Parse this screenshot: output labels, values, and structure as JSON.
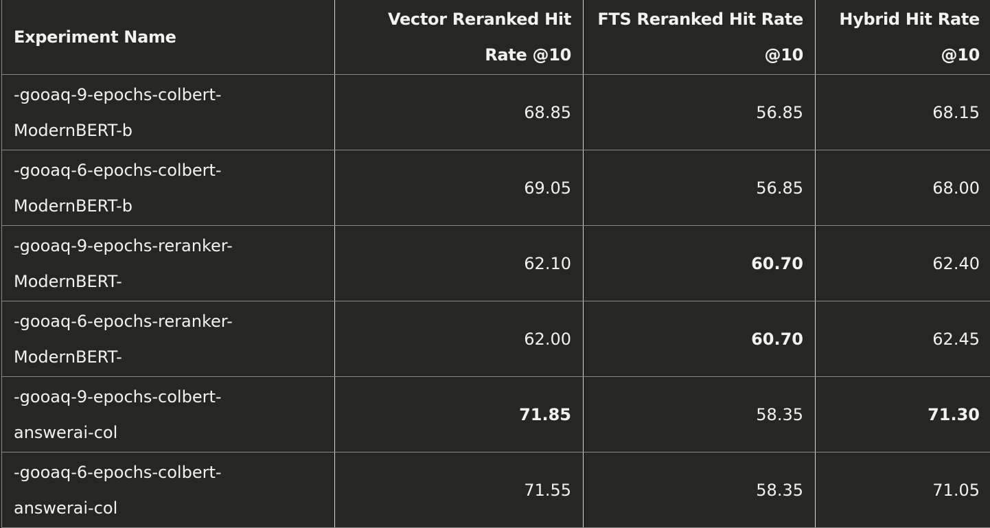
{
  "headers": [
    "Experiment Name",
    "Vector Reranked Hit Rate @10",
    "FTS Reranked Hit Rate @10",
    "Hybrid Hit Rate @10"
  ],
  "rows": [
    {
      "name_line1": "-gooaq-9-epochs-colbert-",
      "name_line2": "ModernBERT-b",
      "vector": "68.85",
      "fts": "56.85",
      "hybrid": "68.15",
      "bold": []
    },
    {
      "name_line1": "-gooaq-6-epochs-colbert-",
      "name_line2": "ModernBERT-b",
      "vector": "69.05",
      "fts": "56.85",
      "hybrid": "68.00",
      "bold": []
    },
    {
      "name_line1": "-gooaq-9-epochs-reranker-",
      "name_line2": "ModernBERT-",
      "vector": "62.10",
      "fts": "60.70",
      "hybrid": "62.40",
      "bold": [
        "fts"
      ]
    },
    {
      "name_line1": "-gooaq-6-epochs-reranker-",
      "name_line2": "ModernBERT-",
      "vector": "62.00",
      "fts": "60.70",
      "hybrid": "62.45",
      "bold": [
        "fts"
      ]
    },
    {
      "name_line1": "-gooaq-9-epochs-colbert-",
      "name_line2": "answerai-col",
      "vector": "71.85",
      "fts": "58.35",
      "hybrid": "71.30",
      "bold": [
        "vector",
        "hybrid"
      ]
    },
    {
      "name_line1": "-gooaq-6-epochs-colbert-",
      "name_line2": "answerai-col",
      "vector": "71.55",
      "fts": "58.35",
      "hybrid": "71.05",
      "bold": []
    }
  ]
}
